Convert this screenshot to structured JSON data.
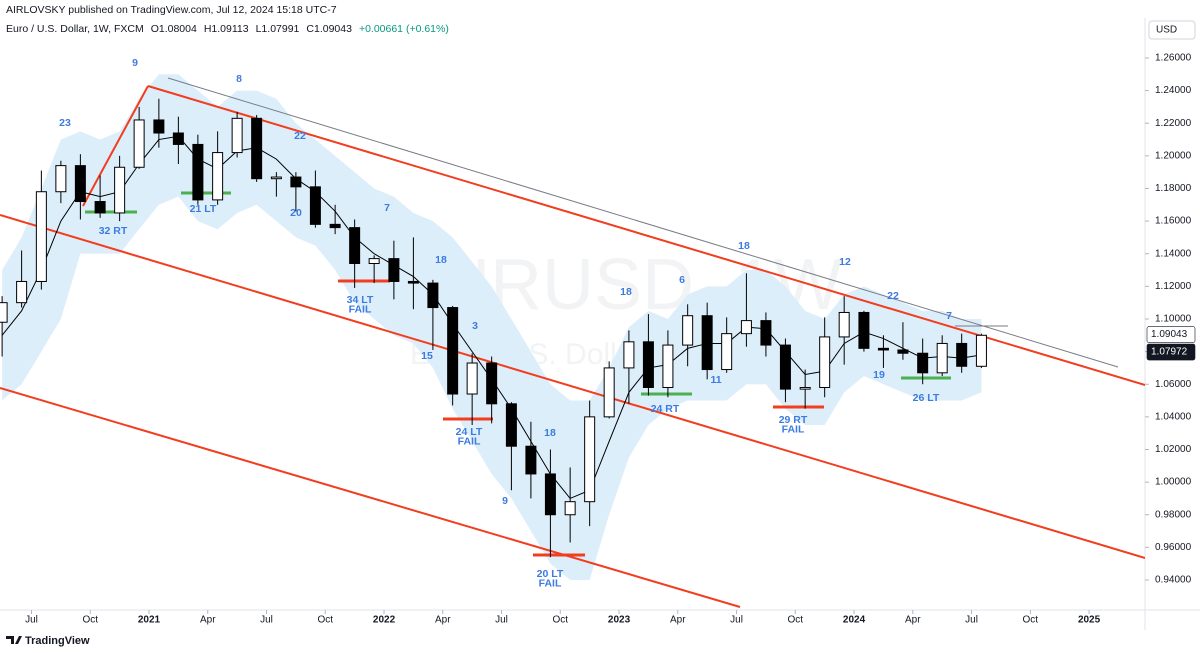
{
  "header": {
    "publisher": "AIRLOVSKY published on TradingView.com, Jul 12, 2024 15:18 UTC-7",
    "symbol_line": "Euro / U.S. Dollar, 1W, FXCM",
    "ohlc": [
      "O1.08004",
      "H1.09113",
      "L1.07991",
      "C1.09043"
    ],
    "change": "+0.00661 (+0.61%)",
    "currency": "USD"
  },
  "watermark": {
    "symbol": "EURUSD, 1W",
    "name": "Euro / U.S. Dollar"
  },
  "footer": {
    "brand": "TradingView"
  },
  "annotations": [
    [
      "9"
    ],
    [
      "23"
    ],
    [
      "8"
    ],
    [
      "22"
    ],
    [
      "21 LT"
    ],
    [
      "32 RT"
    ],
    [
      "20"
    ],
    [
      "7"
    ],
    [
      "18"
    ],
    [
      "34 LT",
      "FAIL"
    ],
    [
      "3"
    ],
    [
      "15"
    ],
    [
      "24 LT",
      "FAIL"
    ],
    [
      "18"
    ],
    [
      "9"
    ],
    [
      "20 LT",
      "FAIL"
    ],
    [
      "18"
    ],
    [
      "6"
    ],
    [
      "24 RT"
    ],
    [
      "11"
    ],
    [
      "18"
    ],
    [
      "29 RT",
      "FAIL"
    ],
    [
      "12"
    ],
    [
      "22"
    ],
    [
      "7"
    ],
    [
      "19"
    ],
    [
      "26 LT"
    ]
  ],
  "chart_data": {
    "type": "candlestick",
    "x": [
      2020.375,
      2020.458,
      2020.542,
      2020.625,
      2020.708,
      2020.792,
      2020.875,
      2020.958,
      2021.042,
      2021.125,
      2021.208,
      2021.292,
      2021.375,
      2021.458,
      2021.542,
      2021.625,
      2021.708,
      2021.792,
      2021.875,
      2021.958,
      2022.042,
      2022.125,
      2022.208,
      2022.292,
      2022.375,
      2022.458,
      2022.542,
      2022.625,
      2022.708,
      2022.792,
      2022.875,
      2022.958,
      2023.042,
      2023.125,
      2023.208,
      2023.292,
      2023.375,
      2023.458,
      2023.542,
      2023.625,
      2023.708,
      2023.792,
      2023.875,
      2023.958,
      2024.042,
      2024.125,
      2024.208,
      2024.292,
      2024.375,
      2024.458,
      2024.542
    ],
    "open": [
      1.098,
      1.11,
      1.123,
      1.178,
      1.194,
      1.172,
      1.165,
      1.193,
      1.222,
      1.214,
      1.207,
      1.173,
      1.202,
      1.223,
      1.186,
      1.187,
      1.181,
      1.158,
      1.156,
      1.134,
      1.137,
      1.123,
      1.122,
      1.107,
      1.054,
      1.073,
      1.048,
      1.022,
      1.005,
      0.98,
      0.988,
      1.04,
      1.07,
      1.086,
      1.058,
      1.084,
      1.102,
      1.069,
      1.091,
      1.099,
      1.084,
      1.057,
      1.058,
      1.089,
      1.104,
      1.082,
      1.081,
      1.079,
      1.067,
      1.085,
      1.071
    ],
    "high": [
      1.114,
      1.142,
      1.191,
      1.197,
      1.201,
      1.188,
      1.2,
      1.23,
      1.235,
      1.224,
      1.213,
      1.215,
      1.227,
      1.225,
      1.19,
      1.19,
      1.191,
      1.17,
      1.161,
      1.139,
      1.148,
      1.15,
      1.124,
      1.108,
      1.079,
      1.077,
      1.049,
      1.037,
      1.02,
      1.009,
      1.05,
      1.074,
      1.093,
      1.103,
      1.093,
      1.109,
      1.11,
      1.101,
      1.128,
      1.104,
      1.088,
      1.069,
      1.101,
      1.114,
      1.105,
      1.09,
      1.098,
      1.088,
      1.09,
      1.091,
      1.091
    ],
    "low": [
      1.077,
      1.107,
      1.118,
      1.171,
      1.161,
      1.162,
      1.16,
      1.192,
      1.205,
      1.195,
      1.17,
      1.17,
      1.199,
      1.184,
      1.175,
      1.166,
      1.156,
      1.152,
      1.119,
      1.122,
      1.112,
      1.106,
      1.081,
      1.047,
      1.035,
      1.036,
      0.995,
      0.99,
      0.954,
      0.963,
      0.973,
      1.039,
      1.048,
      1.053,
      1.052,
      1.071,
      1.063,
      1.067,
      1.083,
      1.077,
      1.049,
      1.045,
      1.052,
      1.072,
      1.08,
      1.07,
      1.075,
      1.06,
      1.065,
      1.067,
      1.07
    ],
    "close": [
      1.11,
      1.123,
      1.178,
      1.194,
      1.172,
      1.165,
      1.193,
      1.222,
      1.214,
      1.207,
      1.173,
      1.202,
      1.223,
      1.186,
      1.187,
      1.181,
      1.158,
      1.156,
      1.134,
      1.137,
      1.123,
      1.122,
      1.107,
      1.054,
      1.073,
      1.048,
      1.022,
      1.005,
      0.98,
      0.988,
      1.04,
      1.07,
      1.086,
      1.058,
      1.084,
      1.102,
      1.069,
      1.091,
      1.099,
      1.084,
      1.057,
      1.058,
      1.089,
      1.104,
      1.082,
      1.081,
      1.079,
      1.067,
      1.085,
      1.071,
      1.09
    ],
    "moving_average": [
      1.09,
      1.105,
      1.13,
      1.16,
      1.178,
      1.175,
      1.178,
      1.195,
      1.21,
      1.212,
      1.198,
      1.192,
      1.203,
      1.205,
      1.198,
      1.186,
      1.178,
      1.166,
      1.15,
      1.14,
      1.133,
      1.126,
      1.115,
      1.097,
      1.08,
      1.063,
      1.045,
      1.025,
      1.005,
      0.99,
      0.995,
      1.025,
      1.055,
      1.07,
      1.072,
      1.082,
      1.085,
      1.085,
      1.095,
      1.094,
      1.08,
      1.066,
      1.068,
      1.085,
      1.092,
      1.088,
      1.082,
      1.076,
      1.077,
      1.076,
      1.078
    ],
    "band_upper": [
      1.13,
      1.15,
      1.18,
      1.21,
      1.215,
      1.21,
      1.215,
      1.235,
      1.25,
      1.25,
      1.24,
      1.23,
      1.24,
      1.24,
      1.235,
      1.22,
      1.21,
      1.2,
      1.19,
      1.18,
      1.175,
      1.165,
      1.16,
      1.15,
      1.135,
      1.12,
      1.1,
      1.08,
      1.06,
      1.05,
      1.05,
      1.07,
      1.095,
      1.105,
      1.1,
      1.115,
      1.12,
      1.12,
      1.13,
      1.13,
      1.12,
      1.105,
      1.1,
      1.115,
      1.12,
      1.115,
      1.11,
      1.105,
      1.105,
      1.1,
      1.1
    ],
    "band_lower": [
      1.05,
      1.06,
      1.08,
      1.1,
      1.14,
      1.14,
      1.14,
      1.155,
      1.17,
      1.175,
      1.16,
      1.155,
      1.165,
      1.17,
      1.16,
      1.15,
      1.145,
      1.13,
      1.11,
      1.1,
      1.09,
      1.085,
      1.07,
      1.045,
      1.025,
      1.005,
      0.99,
      0.97,
      0.95,
      0.94,
      0.94,
      0.98,
      1.015,
      1.035,
      1.045,
      1.05,
      1.05,
      1.05,
      1.06,
      1.06,
      1.045,
      1.035,
      1.035,
      1.055,
      1.065,
      1.06,
      1.055,
      1.05,
      1.05,
      1.05,
      1.055
    ],
    "up_color": "#ffffff",
    "down_color": "#000000",
    "ma_color": "#000000",
    "band_color": "#ddeefb",
    "xlim": [
      2020.366,
      2025.238
    ],
    "xticks": [
      {
        "value": 2020.5,
        "label": "Jul"
      },
      {
        "value": 2020.75,
        "label": "Oct"
      },
      2021,
      {
        "value": 2021.25,
        "label": "Apr"
      },
      {
        "value": 2021.5,
        "label": "Jul"
      },
      {
        "value": 2021.75,
        "label": "Oct"
      },
      2022,
      {
        "value": 2022.25,
        "label": "Apr"
      },
      {
        "value": 2022.5,
        "label": "Jul"
      },
      {
        "value": 2022.75,
        "label": "Oct"
      },
      2023,
      {
        "value": 2023.25,
        "label": "Apr"
      },
      {
        "value": 2023.5,
        "label": "Jul"
      },
      {
        "value": 2023.75,
        "label": "Oct"
      },
      2024,
      {
        "value": 2024.25,
        "label": "Apr"
      },
      {
        "value": 2024.5,
        "label": "Jul"
      },
      {
        "value": 2024.75,
        "label": "Oct"
      },
      2025
    ],
    "ylim": [
      0.9216,
      1.2845
    ],
    "yticks": [
      {
        "value": 0.94,
        "label": "0.94000"
      },
      {
        "value": 0.96,
        "label": "0.96000"
      },
      {
        "value": 0.98,
        "label": "0.98000"
      },
      {
        "value": 1.0,
        "label": "1.00000"
      },
      {
        "value": 1.02,
        "label": "1.02000"
      },
      {
        "value": 1.04,
        "label": "1.04000"
      },
      {
        "value": 1.06,
        "label": "1.06000"
      },
      {
        "value": 1.08,
        "label": "1.08000"
      },
      {
        "value": 1.1,
        "label": "1.10000"
      },
      {
        "value": 1.12,
        "label": "1.12000"
      },
      {
        "value": 1.14,
        "label": "1.14000"
      },
      {
        "value": 1.16,
        "label": "1.16000"
      },
      {
        "value": 1.18,
        "label": "1.18000"
      },
      {
        "value": 1.2,
        "label": "1.20000"
      },
      {
        "value": 1.22,
        "label": "1.22000"
      },
      {
        "value": 1.24,
        "label": "1.24000"
      },
      {
        "value": 1.26,
        "label": "1.26000"
      }
    ],
    "price_labels": [
      {
        "value": 1.09043,
        "label": "1.09043",
        "color": "#ffffff"
      },
      {
        "value": 1.07972,
        "label": "1.07972",
        "color": "#131722"
      }
    ],
    "grid": false
  }
}
